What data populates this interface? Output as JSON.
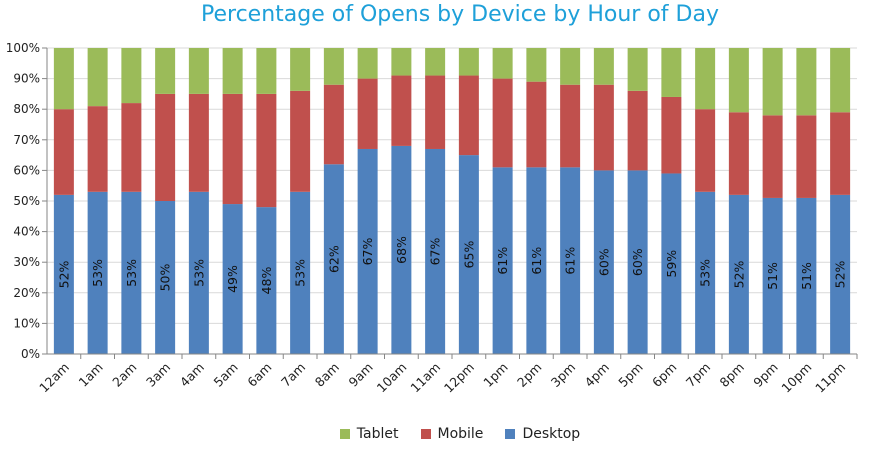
{
  "chart_data": {
    "type": "bar",
    "stacked": true,
    "title": "Percentage of Opens by Device by Hour of Day",
    "xlabel": "",
    "ylabel": "",
    "ylim": [
      0,
      100
    ],
    "yticks": [
      "0%",
      "10%",
      "20%",
      "30%",
      "40%",
      "50%",
      "60%",
      "70%",
      "80%",
      "90%",
      "100%"
    ],
    "grid": true,
    "legend_position": "bottom",
    "categories": [
      "12am",
      "1am",
      "2am",
      "3am",
      "4am",
      "5am",
      "6am",
      "7am",
      "8am",
      "9am",
      "10am",
      "11am",
      "12pm",
      "1pm",
      "2pm",
      "3pm",
      "4pm",
      "5pm",
      "6pm",
      "7pm",
      "8pm",
      "9pm",
      "10pm",
      "11pm"
    ],
    "series": [
      {
        "name": "Desktop",
        "color": "#4f81bd",
        "values": [
          52,
          53,
          53,
          50,
          53,
          49,
          48,
          53,
          62,
          67,
          68,
          67,
          65,
          61,
          61,
          61,
          60,
          60,
          59,
          53,
          52,
          51,
          51,
          52
        ],
        "labels": [
          "52%",
          "53%",
          "53%",
          "50%",
          "53%",
          "49%",
          "48%",
          "53%",
          "62%",
          "67%",
          "68%",
          "67%",
          "65%",
          "61%",
          "61%",
          "61%",
          "60%",
          "60%",
          "59%",
          "53%",
          "52%",
          "51%",
          "51%",
          "52%"
        ]
      },
      {
        "name": "Mobile",
        "color": "#c0504d",
        "values": [
          28,
          28,
          29,
          35,
          32,
          36,
          37,
          33,
          26,
          23,
          23,
          24,
          26,
          29,
          28,
          27,
          28,
          26,
          25,
          27,
          27,
          27,
          27,
          27
        ]
      },
      {
        "name": "Tablet",
        "color": "#9bbb59",
        "values": [
          20,
          19,
          18,
          15,
          15,
          15,
          15,
          14,
          12,
          10,
          9,
          9,
          9,
          10,
          11,
          12,
          12,
          14,
          16,
          20,
          21,
          22,
          22,
          21
        ]
      }
    ],
    "legend_order": [
      "Tablet",
      "Mobile",
      "Desktop"
    ]
  }
}
